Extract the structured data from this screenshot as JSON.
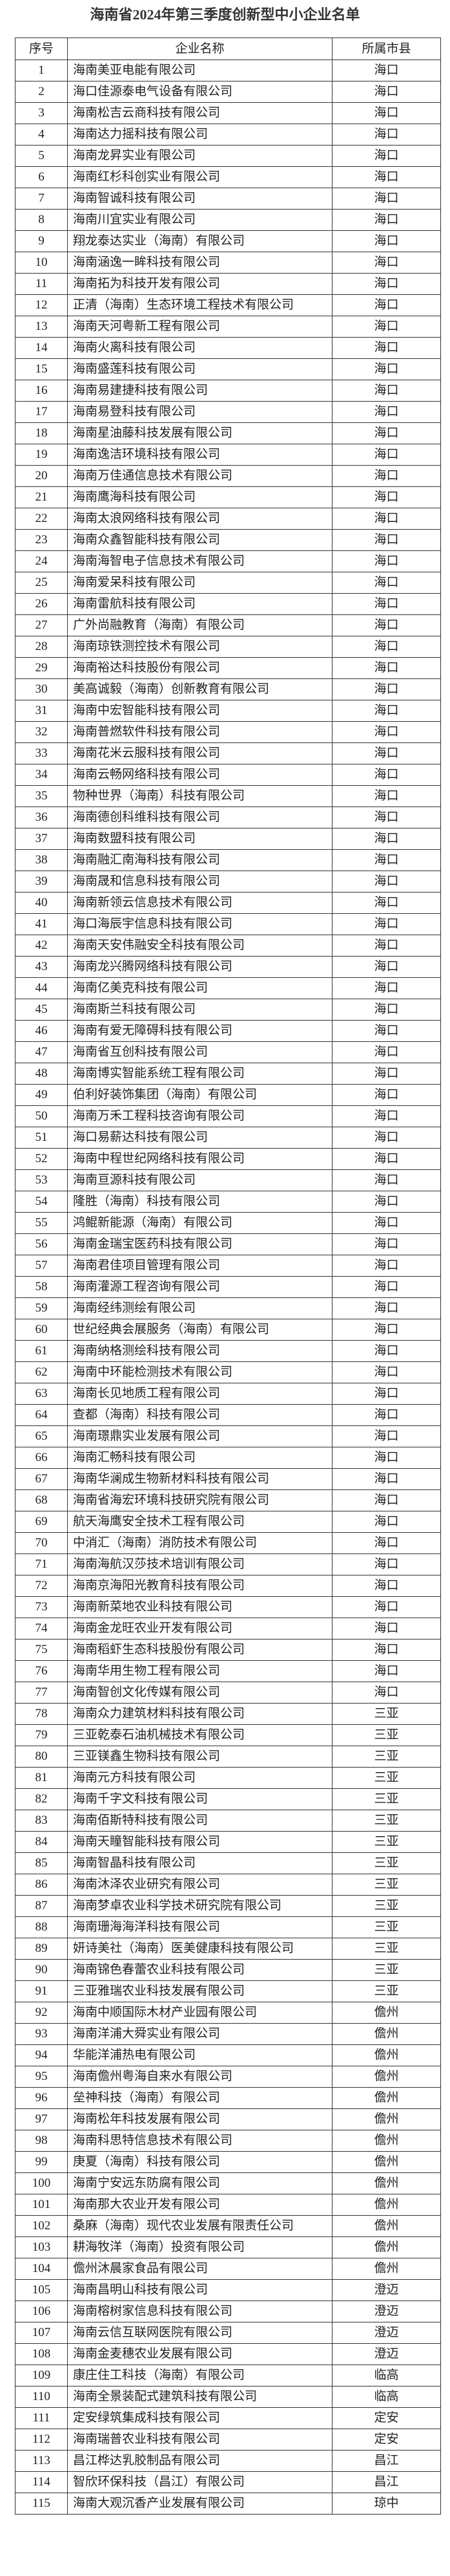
{
  "title": "海南省2024年第三季度创新型中小企业名单",
  "headers": {
    "no": "序号",
    "name": "企业名称",
    "city": "所属市县"
  },
  "rows": [
    {
      "no": "1",
      "name": "海南美亚电能有限公司",
      "city": "海口"
    },
    {
      "no": "2",
      "name": "海口佳源泰电气设备有限公司",
      "city": "海口"
    },
    {
      "no": "3",
      "name": "海南松吉云商科技有限公司",
      "city": "海口"
    },
    {
      "no": "4",
      "name": "海南达力摇科技有限公司",
      "city": "海口"
    },
    {
      "no": "5",
      "name": "海南龙昇实业有限公司",
      "city": "海口"
    },
    {
      "no": "6",
      "name": "海南红杉科创实业有限公司",
      "city": "海口"
    },
    {
      "no": "7",
      "name": "海南智诚科技有限公司",
      "city": "海口"
    },
    {
      "no": "8",
      "name": "海南川宜实业有限公司",
      "city": "海口"
    },
    {
      "no": "9",
      "name": "翔龙泰达实业（海南）有限公司",
      "city": "海口"
    },
    {
      "no": "10",
      "name": "海南涵逸一眸科技有限公司",
      "city": "海口"
    },
    {
      "no": "11",
      "name": "海南拓为科技开发有限公司",
      "city": "海口"
    },
    {
      "no": "12",
      "name": "正清（海南）生态环境工程技术有限公司",
      "city": "海口"
    },
    {
      "no": "13",
      "name": "海南天河粤新工程有限公司",
      "city": "海口"
    },
    {
      "no": "14",
      "name": "海南火离科技有限公司",
      "city": "海口"
    },
    {
      "no": "15",
      "name": "海南盛莲科技有限公司",
      "city": "海口"
    },
    {
      "no": "16",
      "name": "海南易建捷科技有限公司",
      "city": "海口"
    },
    {
      "no": "17",
      "name": "海南易登科技有限公司",
      "city": "海口"
    },
    {
      "no": "18",
      "name": "海南星油藤科技发展有限公司",
      "city": "海口"
    },
    {
      "no": "19",
      "name": "海南逸洁环境科技有限公司",
      "city": "海口"
    },
    {
      "no": "20",
      "name": "海南万佳通信息技术有限公司",
      "city": "海口"
    },
    {
      "no": "21",
      "name": "海南鹰海科技有限公司",
      "city": "海口"
    },
    {
      "no": "22",
      "name": "海南太浪网络科技有限公司",
      "city": "海口"
    },
    {
      "no": "23",
      "name": "海南众鑫智能科技有限公司",
      "city": "海口"
    },
    {
      "no": "24",
      "name": "海南海智电子信息技术有限公司",
      "city": "海口"
    },
    {
      "no": "25",
      "name": "海南爱呆科技有限公司",
      "city": "海口"
    },
    {
      "no": "26",
      "name": "海南雷航科技有限公司",
      "city": "海口"
    },
    {
      "no": "27",
      "name": "广外尚融教育（海南）有限公司",
      "city": "海口"
    },
    {
      "no": "28",
      "name": "海南琼铁测控技术有限公司",
      "city": "海口"
    },
    {
      "no": "29",
      "name": "海南裕达科技股份有限公司",
      "city": "海口"
    },
    {
      "no": "30",
      "name": "美高诚毅（海南）创新教育有限公司",
      "city": "海口"
    },
    {
      "no": "31",
      "name": "海南中宏智能科技有限公司",
      "city": "海口"
    },
    {
      "no": "32",
      "name": "海南普燃软件科技有限公司",
      "city": "海口"
    },
    {
      "no": "33",
      "name": "海南花米云服科技有限公司",
      "city": "海口"
    },
    {
      "no": "34",
      "name": "海南云畅网络科技有限公司",
      "city": "海口"
    },
    {
      "no": "35",
      "name": "物种世界（海南）科技有限公司",
      "city": "海口"
    },
    {
      "no": "36",
      "name": "海南德创科维科技有限公司",
      "city": "海口"
    },
    {
      "no": "37",
      "name": "海南数盟科技有限公司",
      "city": "海口"
    },
    {
      "no": "38",
      "name": "海南融汇南海科技有限公司",
      "city": "海口"
    },
    {
      "no": "39",
      "name": "海南晟和信息科技有限公司",
      "city": "海口"
    },
    {
      "no": "40",
      "name": "海南新领云信息技术有限公司",
      "city": "海口"
    },
    {
      "no": "41",
      "name": "海口海辰宇信息科技有限公司",
      "city": "海口"
    },
    {
      "no": "42",
      "name": "海南天安伟融安全科技有限公司",
      "city": "海口"
    },
    {
      "no": "43",
      "name": "海南龙兴腾网络科技有限公司",
      "city": "海口"
    },
    {
      "no": "44",
      "name": "海南亿美克科技有限公司",
      "city": "海口"
    },
    {
      "no": "45",
      "name": "海南斯兰科技有限公司",
      "city": "海口"
    },
    {
      "no": "46",
      "name": "海南有爱无障碍科技有限公司",
      "city": "海口"
    },
    {
      "no": "47",
      "name": "海南省互创科技有限公司",
      "city": "海口"
    },
    {
      "no": "48",
      "name": "海南博实智能系统工程有限公司",
      "city": "海口"
    },
    {
      "no": "49",
      "name": "伯利好装饰集团（海南）有限公司",
      "city": "海口"
    },
    {
      "no": "50",
      "name": "海南万禾工程科技咨询有限公司",
      "city": "海口"
    },
    {
      "no": "51",
      "name": "海口易薪达科技有限公司",
      "city": "海口"
    },
    {
      "no": "52",
      "name": "海南中程世纪网络科技有限公司",
      "city": "海口"
    },
    {
      "no": "53",
      "name": "海南亘源科技有限公司",
      "city": "海口"
    },
    {
      "no": "54",
      "name": "隆胜（海南）科技有限公司",
      "city": "海口"
    },
    {
      "no": "55",
      "name": "鸿鲲新能源（海南）有限公司",
      "city": "海口"
    },
    {
      "no": "56",
      "name": "海南金瑞宝医药科技有限公司",
      "city": "海口"
    },
    {
      "no": "57",
      "name": "海南君佳项目管理有限公司",
      "city": "海口"
    },
    {
      "no": "58",
      "name": "海南灌源工程咨询有限公司",
      "city": "海口"
    },
    {
      "no": "59",
      "name": "海南经纬测绘有限公司",
      "city": "海口"
    },
    {
      "no": "60",
      "name": "世纪经典会展服务（海南）有限公司",
      "city": "海口"
    },
    {
      "no": "61",
      "name": "海南纳格测绘科技有限公司",
      "city": "海口"
    },
    {
      "no": "62",
      "name": "海南中环能检测技术有限公司",
      "city": "海口"
    },
    {
      "no": "63",
      "name": "海南长见地质工程有限公司",
      "city": "海口"
    },
    {
      "no": "64",
      "name": "查都（海南）科技有限公司",
      "city": "海口"
    },
    {
      "no": "65",
      "name": "海南璟鼎实业发展有限公司",
      "city": "海口"
    },
    {
      "no": "66",
      "name": "海南汇畅科技有限公司",
      "city": "海口"
    },
    {
      "no": "67",
      "name": "海南华澜成生物新材料科技有限公司",
      "city": "海口"
    },
    {
      "no": "68",
      "name": "海南省海宏环境科技研究院有限公司",
      "city": "海口"
    },
    {
      "no": "69",
      "name": "航天海鹰安全技术工程有限公司",
      "city": "海口"
    },
    {
      "no": "70",
      "name": "中消汇（海南）消防技术有限公司",
      "city": "海口"
    },
    {
      "no": "71",
      "name": "海南海航汉莎技术培训有限公司",
      "city": "海口"
    },
    {
      "no": "72",
      "name": "海南京海阳光教育科技有限公司",
      "city": "海口"
    },
    {
      "no": "73",
      "name": "海南新菜地农业科技有限公司",
      "city": "海口"
    },
    {
      "no": "74",
      "name": "海南金龙旺农业开发有限公司",
      "city": "海口"
    },
    {
      "no": "75",
      "name": "海南稻虾生态科技股份有限公司",
      "city": "海口"
    },
    {
      "no": "76",
      "name": "海南华用生物工程有限公司",
      "city": "海口"
    },
    {
      "no": "77",
      "name": "海南智创文化传媒有限公司",
      "city": "海口"
    },
    {
      "no": "78",
      "name": "海南众力建筑材料科技有限公司",
      "city": "三亚"
    },
    {
      "no": "79",
      "name": "三亚乾泰石油机械技术有限公司",
      "city": "三亚"
    },
    {
      "no": "80",
      "name": "三亚镁鑫生物科技有限公司",
      "city": "三亚"
    },
    {
      "no": "81",
      "name": "海南元方科技有限公司",
      "city": "三亚"
    },
    {
      "no": "82",
      "name": "海南千字文科技有限公司",
      "city": "三亚"
    },
    {
      "no": "83",
      "name": "海南佰斯特科技有限公司",
      "city": "三亚"
    },
    {
      "no": "84",
      "name": "海南天瞳智能科技有限公司",
      "city": "三亚"
    },
    {
      "no": "85",
      "name": "海南智晶科技有限公司",
      "city": "三亚"
    },
    {
      "no": "86",
      "name": "海南沐泽农业研究有限公司",
      "city": "三亚"
    },
    {
      "no": "87",
      "name": "海南梦卓农业科学技术研究院有限公司",
      "city": "三亚"
    },
    {
      "no": "88",
      "name": "海南珊海海洋科技有限公司",
      "city": "三亚"
    },
    {
      "no": "89",
      "name": "妍诗美社（海南）医美健康科技有限公司",
      "city": "三亚"
    },
    {
      "no": "90",
      "name": "海南锦色春蕾农业科技有限公司",
      "city": "三亚"
    },
    {
      "no": "91",
      "name": "三亚雅瑞农业科技发展有限公司",
      "city": "三亚"
    },
    {
      "no": "92",
      "name": "海南中顺国际木材产业园有限公司",
      "city": "儋州"
    },
    {
      "no": "93",
      "name": "海南洋浦大舜实业有限公司",
      "city": "儋州"
    },
    {
      "no": "94",
      "name": "华能洋浦热电有限公司",
      "city": "儋州"
    },
    {
      "no": "95",
      "name": "海南儋州粤海自来水有限公司",
      "city": "儋州"
    },
    {
      "no": "96",
      "name": "垒神科技（海南）有限公司",
      "city": "儋州"
    },
    {
      "no": "97",
      "name": "海南松年科技发展有限公司",
      "city": "儋州"
    },
    {
      "no": "98",
      "name": "海南科思特信息技术有限公司",
      "city": "儋州"
    },
    {
      "no": "99",
      "name": "庚夏（海南）科技有限公司",
      "city": "儋州"
    },
    {
      "no": "100",
      "name": "海南宁安远东防腐有限公司",
      "city": "儋州"
    },
    {
      "no": "101",
      "name": "海南那大农业开发有限公司",
      "city": "儋州"
    },
    {
      "no": "102",
      "name": "桑麻（海南）现代农业发展有限责任公司",
      "city": "儋州"
    },
    {
      "no": "103",
      "name": "耕海牧洋（海南）投资有限公司",
      "city": "儋州"
    },
    {
      "no": "104",
      "name": "儋州沐晨家食品有限公司",
      "city": "儋州"
    },
    {
      "no": "105",
      "name": "海南昌明山科技有限公司",
      "city": "澄迈"
    },
    {
      "no": "106",
      "name": "海南榕树家信息科技有限公司",
      "city": "澄迈"
    },
    {
      "no": "107",
      "name": "海南云信互联网医院有限公司",
      "city": "澄迈"
    },
    {
      "no": "108",
      "name": "海南金麦穗农业发展有限公司",
      "city": "澄迈"
    },
    {
      "no": "109",
      "name": "康庄住工科技（海南）有限公司",
      "city": "临高"
    },
    {
      "no": "110",
      "name": "海南全景装配式建筑科技有限公司",
      "city": "临高"
    },
    {
      "no": "111",
      "name": "定安绿筑集成科技有限公司",
      "city": "定安"
    },
    {
      "no": "112",
      "name": "海南瑞普农业科技有限公司",
      "city": "定安"
    },
    {
      "no": "113",
      "name": "昌江桦达乳胶制品有限公司",
      "city": "昌江"
    },
    {
      "no": "114",
      "name": "智欣环保科技（昌江）有限公司",
      "city": "昌江"
    },
    {
      "no": "115",
      "name": "海南大观沉香产业发展有限公司",
      "city": "琼中"
    }
  ]
}
